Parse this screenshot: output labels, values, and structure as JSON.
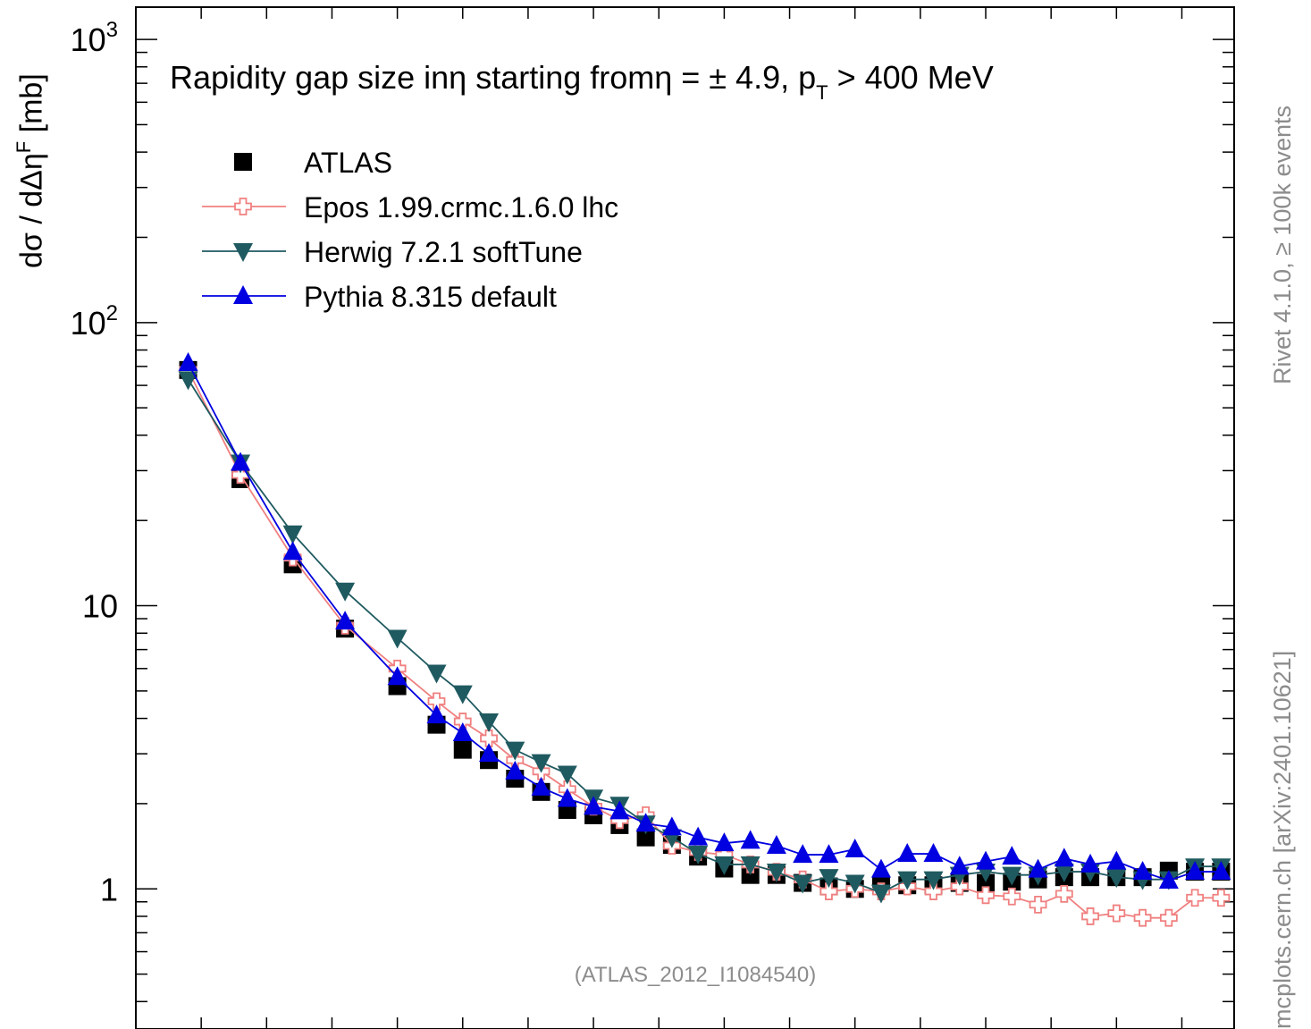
{
  "chart_data": {
    "type": "line",
    "title": "",
    "annotation": "Rapidity gap size inη starting fromη = ± 4.9, p_T > 400 MeV",
    "ylabel": "dσ / dΔηF [mb]",
    "xlabel": "",
    "y_scale": "log",
    "ylim": [
      0.32,
      1300
    ],
    "xlim": [
      -0.4,
      8.0
    ],
    "y_tick_labels": [
      "1",
      "10",
      "10^2",
      "10^3"
    ],
    "analysis_tag": "(ATLAS_2012_I1084540)",
    "side_label_top": "Rivet 4.1.0, ≥ 100k events",
    "side_label_bottom": "mcplots.cern.ch [arXiv:2401.10621]",
    "legend_placement": "top-left",
    "grid": false,
    "x": [
      0.0,
      0.4,
      0.8,
      1.2,
      1.6,
      1.9,
      2.1,
      2.3,
      2.5,
      2.7,
      2.9,
      3.1,
      3.3,
      3.5,
      3.7,
      3.9,
      4.1,
      4.3,
      4.5,
      4.7,
      4.9,
      5.1,
      5.3,
      5.5,
      5.7,
      5.9,
      6.1,
      6.3,
      6.5,
      6.7,
      6.9,
      7.1,
      7.3,
      7.5,
      7.7,
      7.9
    ],
    "series": [
      {
        "name": "ATLAS",
        "color": "#000000",
        "marker": "square",
        "line": false,
        "values": [
          68,
          28,
          14,
          8.3,
          5.2,
          3.8,
          3.1,
          2.85,
          2.45,
          2.2,
          1.9,
          1.82,
          1.68,
          1.52,
          1.43,
          1.3,
          1.18,
          1.12,
          1.12,
          1.05,
          1.02,
          1.0,
          1.03,
          1.03,
          1.03,
          1.05,
          1.05,
          1.06,
          1.08,
          1.1,
          1.1,
          1.1,
          1.1,
          1.16,
          1.15,
          1.15
        ]
      },
      {
        "name": "Epos 1.99.crmc.1.6.0 lhc",
        "color": "#f08080",
        "marker": "cross-open",
        "line": true,
        "values": [
          68,
          29,
          14.8,
          8.5,
          6.0,
          4.6,
          3.9,
          3.4,
          2.85,
          2.6,
          2.25,
          1.95,
          1.75,
          1.82,
          1.42,
          1.35,
          1.32,
          1.22,
          1.15,
          1.08,
          0.98,
          1.0,
          0.98,
          1.02,
          0.98,
          1.02,
          0.95,
          0.94,
          0.88,
          0.96,
          0.8,
          0.82,
          0.79,
          0.79,
          0.93,
          0.93
        ]
      },
      {
        "name": "Herwig 7.2.1 softTune",
        "color": "#1f5a60",
        "marker": "triangle-down",
        "line": true,
        "values": [
          63,
          32,
          18,
          11.3,
          7.7,
          5.8,
          4.9,
          3.9,
          3.1,
          2.8,
          2.55,
          2.1,
          1.98,
          1.7,
          1.52,
          1.33,
          1.22,
          1.22,
          1.15,
          1.05,
          1.1,
          1.05,
          0.97,
          1.08,
          1.08,
          1.12,
          1.15,
          1.12,
          1.12,
          1.15,
          1.15,
          1.1,
          1.08,
          1.08,
          1.2,
          1.2
        ]
      },
      {
        "name": "Pythia 8.315 default",
        "color": "#0000e0",
        "marker": "triangle-up",
        "line": true,
        "values": [
          72,
          32,
          15.5,
          8.8,
          5.6,
          4.1,
          3.55,
          3.0,
          2.6,
          2.28,
          2.08,
          1.95,
          1.88,
          1.7,
          1.65,
          1.52,
          1.45,
          1.48,
          1.42,
          1.32,
          1.32,
          1.38,
          1.17,
          1.33,
          1.33,
          1.2,
          1.25,
          1.3,
          1.17,
          1.28,
          1.22,
          1.25,
          1.15,
          1.07,
          1.15,
          1.15
        ]
      }
    ]
  }
}
